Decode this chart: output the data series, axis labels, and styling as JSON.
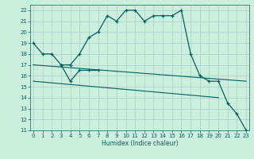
{
  "xlabel": "Humidex (Indice chaleur)",
  "x_values": [
    0,
    1,
    2,
    3,
    4,
    5,
    6,
    7,
    8,
    9,
    10,
    11,
    12,
    13,
    14,
    15,
    16,
    17,
    18,
    19,
    20,
    21,
    22,
    23
  ],
  "line1": [
    19,
    18,
    18,
    17,
    17,
    18,
    19.5,
    20,
    21.5,
    21,
    22,
    22,
    21,
    21.5,
    21.5,
    21.5,
    22,
    18,
    16,
    15.5,
    15.5,
    13.5,
    12.5,
    11
  ],
  "line2_x": [
    3,
    4,
    5,
    6,
    7
  ],
  "line2_y": [
    17,
    15.5,
    16.5,
    16.5,
    16.5
  ],
  "line3_x": [
    0,
    23
  ],
  "line3_y": [
    17,
    15.5
  ],
  "line4_x": [
    0,
    20
  ],
  "line4_y": [
    15.5,
    14.0
  ],
  "color_main": "#006060",
  "bg_color": "#cceedd",
  "grid_color": "#aacccc",
  "ylim": [
    11,
    22.5
  ],
  "yticks": [
    11,
    12,
    13,
    14,
    15,
    16,
    17,
    18,
    19,
    20,
    21,
    22
  ],
  "xlim": [
    -0.3,
    23.3
  ]
}
